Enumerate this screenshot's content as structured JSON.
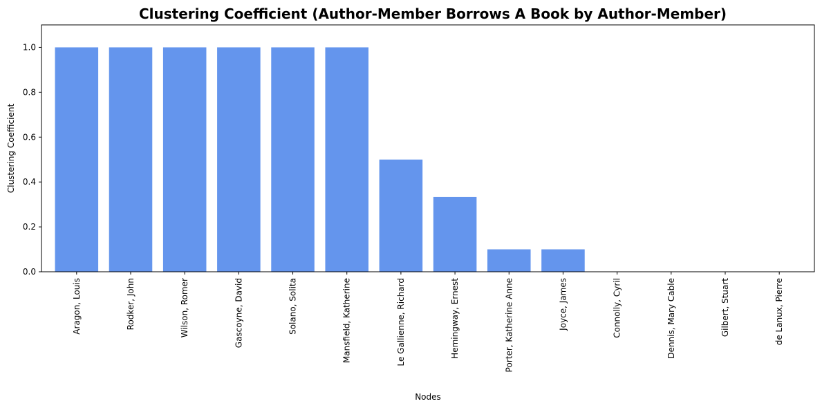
{
  "chart_data": {
    "type": "bar",
    "title": "Clustering Coefficient (Author-Member Borrows A Book by Author-Member)",
    "xlabel": "Nodes",
    "ylabel": "Clustering Coefficient",
    "ylim": [
      0,
      1.1
    ],
    "yticks": [
      "0.0",
      "0.2",
      "0.4",
      "0.6",
      "0.8",
      "1.0"
    ],
    "grid": false,
    "bar_color": "#6495ED",
    "categories": [
      "Aragon, Louis",
      "Rodker, John",
      "Wilson, Romer",
      "Gascoyne, David",
      "Solano, Solita",
      "Mansfield, Katherine",
      "Le Gallienne, Richard",
      "Hemingway, Ernest",
      "Porter, Katherine Anne",
      "Joyce, James",
      "Connolly, Cyril",
      "Dennis, Mary Cable",
      "Gilbert, Stuart",
      "de Lanux, Pierre"
    ],
    "values": [
      1.0,
      1.0,
      1.0,
      1.0,
      1.0,
      1.0,
      0.5,
      0.333,
      0.1,
      0.1,
      0.0,
      0.0,
      0.0,
      0.0
    ]
  }
}
